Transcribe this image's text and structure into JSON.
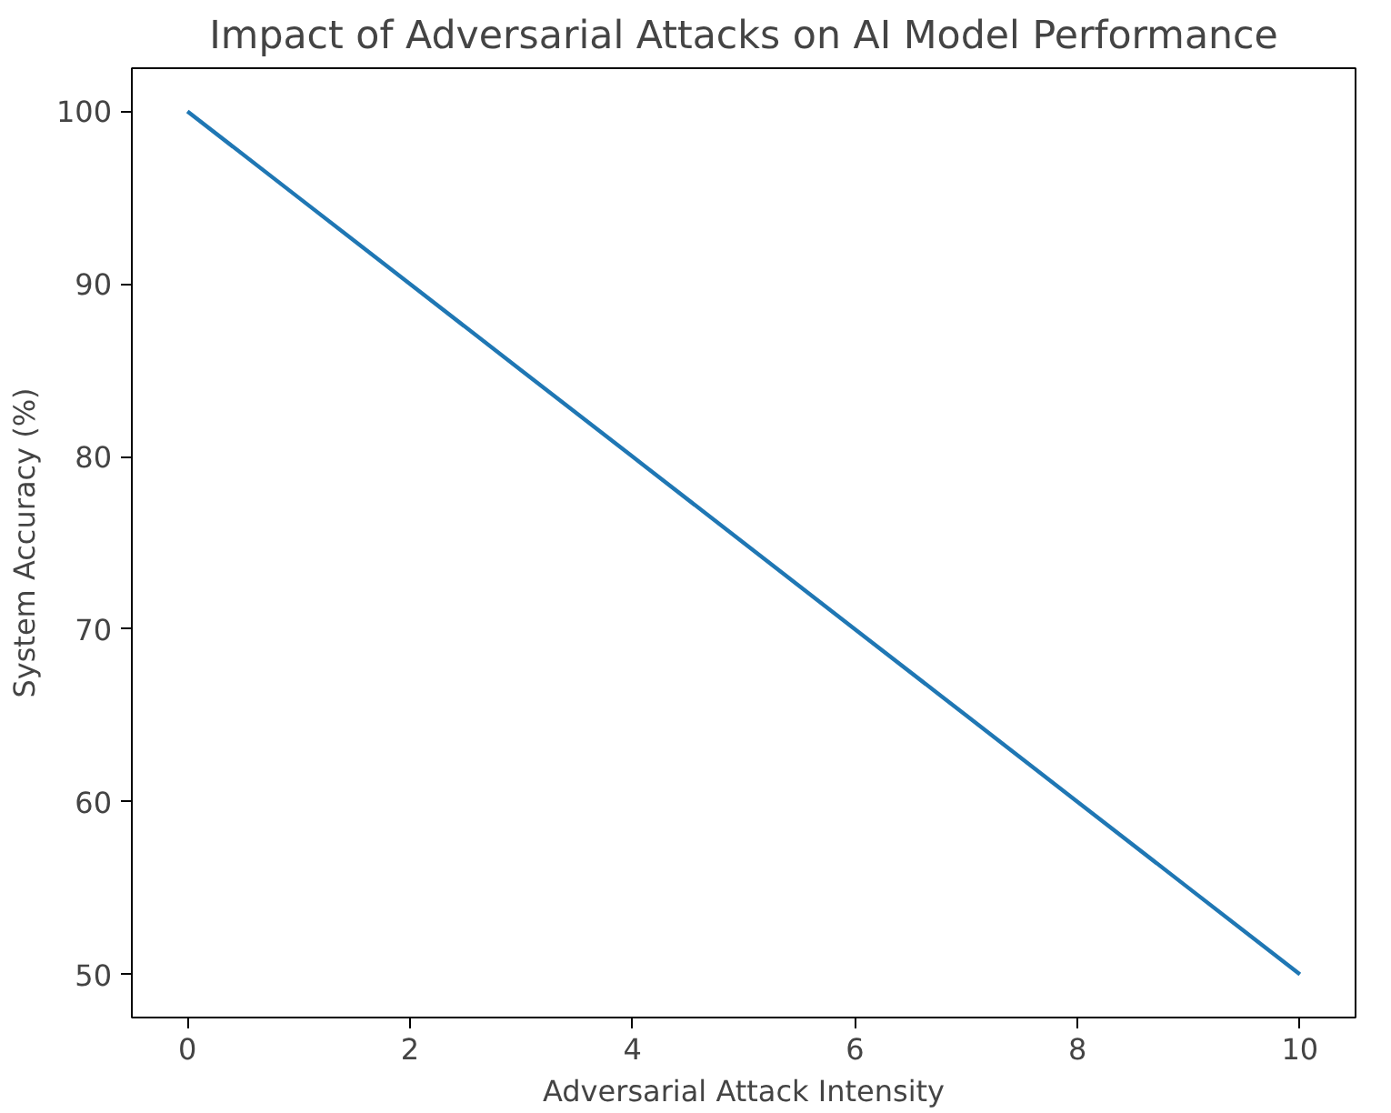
{
  "chart_data": {
    "type": "line",
    "title": "Impact of Adversarial Attacks on AI Model Performance",
    "xlabel": "Adversarial Attack Intensity",
    "ylabel": "System Accuracy (%)",
    "x": [
      0,
      1,
      2,
      3,
      4,
      5,
      6,
      7,
      8,
      9,
      10
    ],
    "series": [
      {
        "color": "#1f77b4",
        "values": [
          100,
          95,
          90,
          85,
          80,
          75,
          70,
          65,
          60,
          55,
          50
        ]
      }
    ],
    "xlim": [
      -0.5,
      10.5
    ],
    "ylim": [
      47.5,
      102.5
    ],
    "xticks": [
      0,
      2,
      4,
      6,
      8,
      10
    ],
    "yticks": [
      50,
      60,
      70,
      80,
      90,
      100
    ],
    "grid": false,
    "marker": "none",
    "line_style": "solid"
  }
}
